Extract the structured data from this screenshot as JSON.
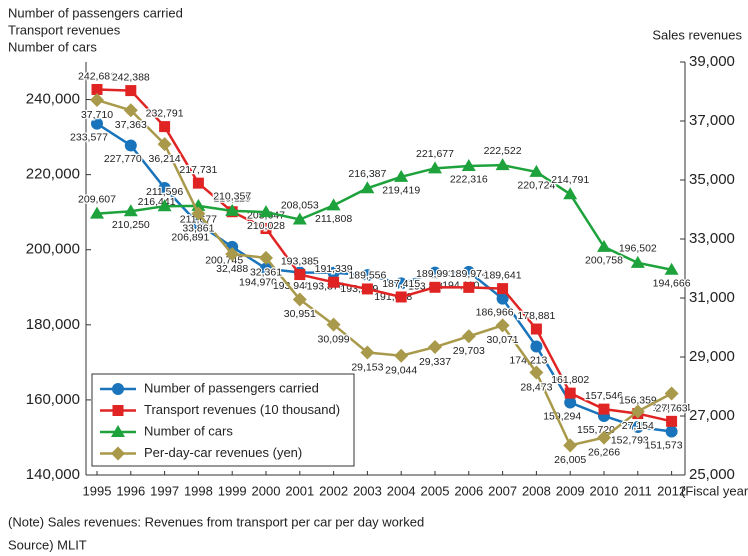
{
  "chart_data": {
    "type": "line",
    "y_axis_title": [
      "Number of passengers carried",
      "Transport revenues",
      "Number of cars"
    ],
    "y2_axis_title": "Sales revenues",
    "x_axis_unit": "(Fiscal year)",
    "notes": [
      "(Note) Sales revenues: Revenues from transport per car per day worked",
      "Source) MLIT"
    ],
    "categories": [
      "1995",
      "1996",
      "1997",
      "1998",
      "1999",
      "2000",
      "2001",
      "2002",
      "2003",
      "2004",
      "2005",
      "2006",
      "2007",
      "2008",
      "2009",
      "2010",
      "2011",
      "2012"
    ],
    "ylim": [
      140000,
      250000
    ],
    "yticks": [
      {
        "value": 140000,
        "label": "140,000"
      },
      {
        "value": 160000,
        "label": "160,000"
      },
      {
        "value": 180000,
        "label": "180,000"
      },
      {
        "value": 200000,
        "label": "200,000"
      },
      {
        "value": 220000,
        "label": "220,000"
      },
      {
        "value": 240000,
        "label": "240,000"
      }
    ],
    "y2lim": [
      25000,
      39000
    ],
    "y2ticks": [
      {
        "value": 25000,
        "label": "25,000"
      },
      {
        "value": 27000,
        "label": "27,000"
      },
      {
        "value": 29000,
        "label": "29,000"
      },
      {
        "value": 31000,
        "label": "31,000"
      },
      {
        "value": 33000,
        "label": "33,000"
      },
      {
        "value": 35000,
        "label": "35,000"
      },
      {
        "value": 37000,
        "label": "37,000"
      },
      {
        "value": 39000,
        "label": "39,000"
      }
    ],
    "grid": false,
    "legend": "lower left",
    "series": [
      {
        "name": "Number of passengers carried",
        "color": "#1a74bb",
        "marker": "circle",
        "axis": "y",
        "values": [
          233577,
          227770,
          216441,
          206891,
          200745,
          194970,
          193948,
          193876,
          193229,
          191028,
          193899,
          194110,
          186966,
          174213,
          159294,
          155720,
          152793,
          151573
        ],
        "value_labels": [
          "233,577",
          "227,770",
          "216,441",
          "206,891",
          "200,745",
          "194,970",
          "193,948",
          "193,876",
          "193,229",
          "191,028",
          "193,899",
          "194,110",
          "186,966",
          "174,213",
          "159,294",
          "155,720",
          "152,793",
          "151,573"
        ]
      },
      {
        "name": "Transport revenues (10 thousand)",
        "color": "#e02424",
        "marker": "square",
        "axis": "y",
        "values": [
          242681,
          242388,
          232791,
          217731,
          210119,
          205647,
          193385,
          191339,
          189556,
          187415,
          189993,
          189974,
          189641,
          178881,
          161802,
          157546,
          156359,
          154294
        ],
        "value_labels": [
          "242,681",
          "242,388",
          "232,791",
          "217,731",
          "210,119",
          "205,647",
          "193,385",
          "191,339",
          "189,556",
          "187,415",
          "189,993",
          "189,974",
          "189,641",
          "178,881",
          "161,802",
          "157,546",
          "156,359",
          "154,294"
        ]
      },
      {
        "name": "Number of cars",
        "color": "#1ea23c",
        "marker": "triangle",
        "axis": "y",
        "values": [
          209607,
          210250,
          211596,
          211677,
          210357,
          210028,
          208053,
          211808,
          216387,
          219419,
          221677,
          222316,
          222522,
          220724,
          214791,
          200758,
          196502,
          194666
        ],
        "value_labels": [
          "209,607",
          "210,250",
          "211,596",
          "211,677",
          "210,357",
          "210,028",
          "208,053",
          "211,808",
          "216,387",
          "219,419",
          "221,677",
          "222,316",
          "222,522",
          "220,724",
          "214,791",
          "200,758",
          "196,502",
          "194,666"
        ]
      },
      {
        "name": "Per-day-car revenues (yen)",
        "color": "#a9994a",
        "marker": "diamond",
        "axis": "y2",
        "values": [
          37710,
          37363,
          36214,
          33861,
          32488,
          32361,
          30951,
          30099,
          29153,
          29044,
          29337,
          29703,
          30071,
          28473,
          26005,
          26266,
          27154,
          27763
        ],
        "value_labels": [
          "37,710",
          "37,363",
          "36,214",
          "33,861",
          "32,488",
          "32,361",
          "30,951",
          "30,099",
          "29,153",
          "29,044",
          "29,337",
          "29,703",
          "30,071",
          "28,473",
          "26,005",
          "26,266",
          "27,154",
          "27,763"
        ]
      }
    ]
  }
}
